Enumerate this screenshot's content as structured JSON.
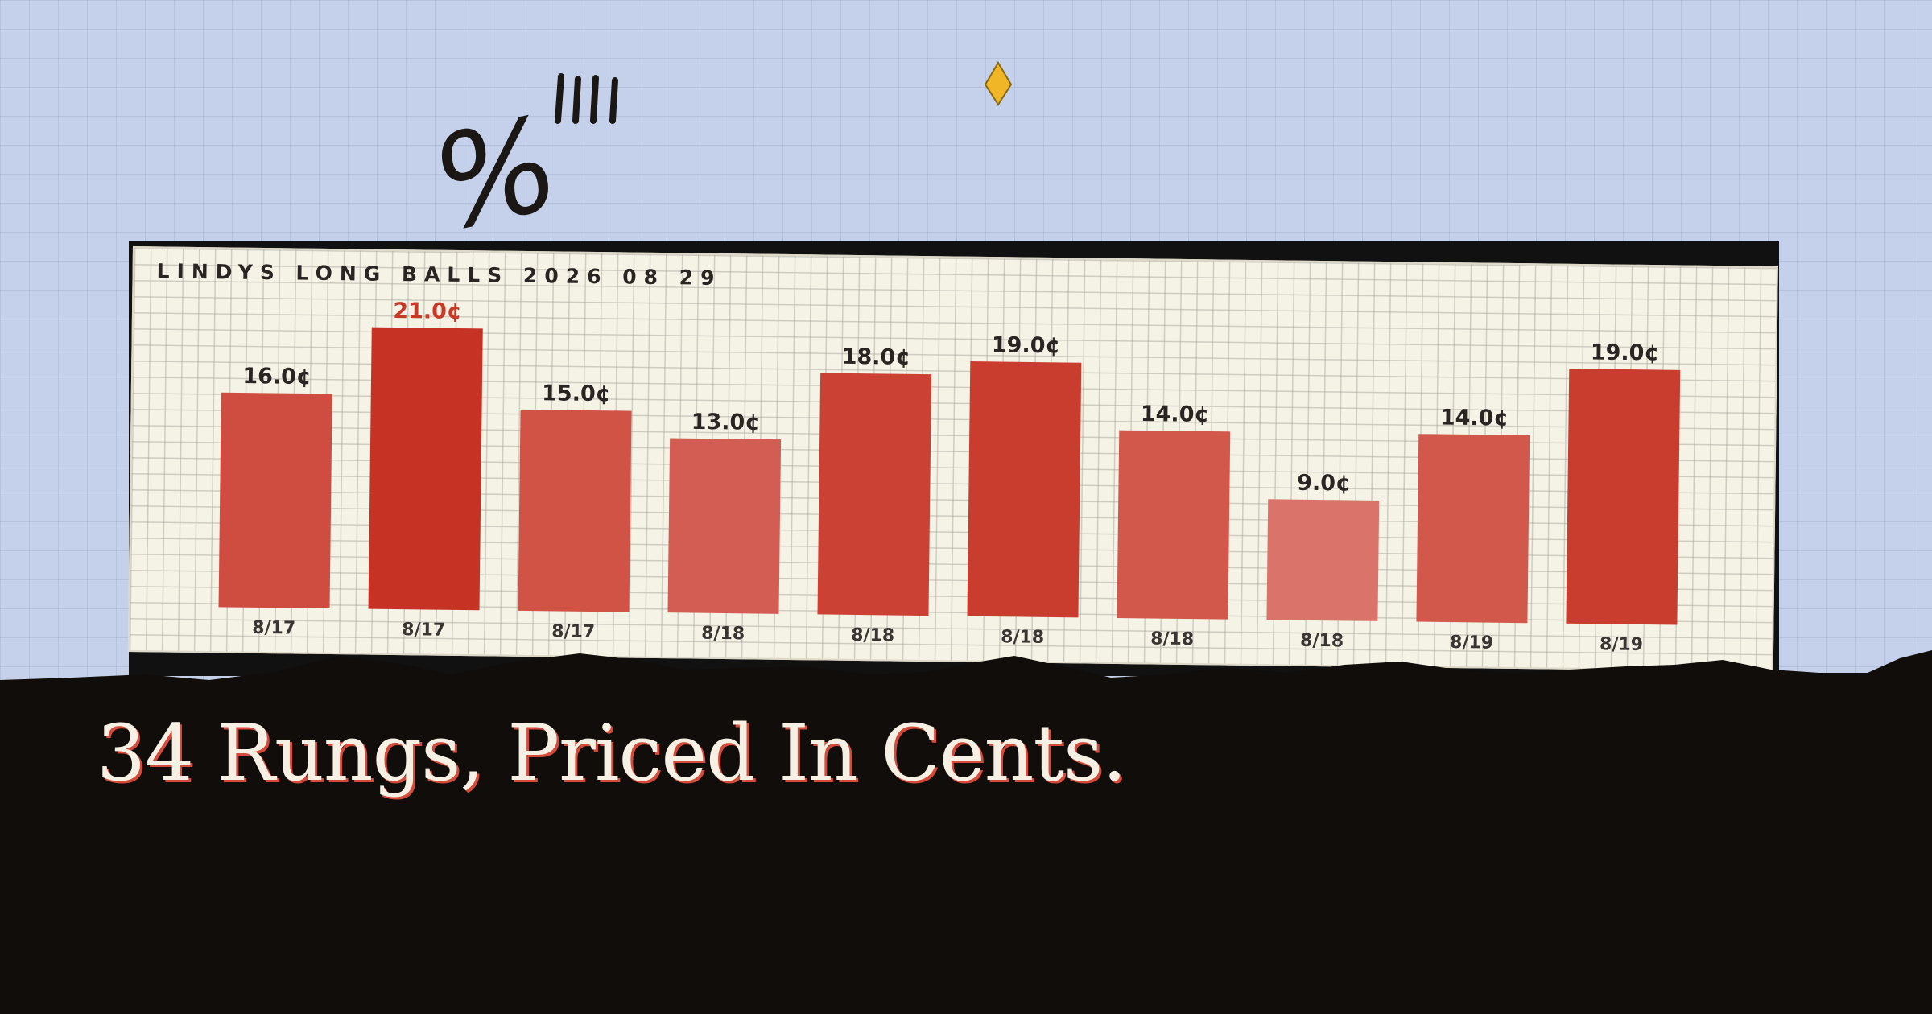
{
  "card_title": "LINDYS LONG BALLS 2026 08 29",
  "headline": "34 Rungs, Priced In Cents.",
  "decorations": {
    "percent_glyph": "%",
    "tally_marks": "||||",
    "icon": "diamond-icon"
  },
  "colors": {
    "accent": "#c93a26",
    "ink": "#2a2522",
    "background": "#c5d1ea",
    "ground": "#110d0b",
    "diamond": "#f0b628"
  },
  "chart_data": {
    "type": "bar",
    "title": "LINDYS LONG BALLS 2026 08 29",
    "xlabel": "",
    "ylabel": "",
    "unit": "¢",
    "categories": [
      "8/17",
      "8/17",
      "8/17",
      "8/18",
      "8/18",
      "8/18",
      "8/18",
      "8/18",
      "8/19",
      "8/19"
    ],
    "values": [
      16.0,
      21.0,
      15.0,
      13.0,
      18.0,
      19.0,
      14.0,
      9.0,
      14.0,
      19.0
    ],
    "labels": [
      "16.0¢",
      "21.0¢",
      "15.0¢",
      "13.0¢",
      "18.0¢",
      "19.0¢",
      "14.0¢",
      "9.0¢",
      "14.0¢",
      "19.0¢"
    ],
    "ylim": [
      0,
      21
    ],
    "grid": true,
    "highlight": "max"
  }
}
